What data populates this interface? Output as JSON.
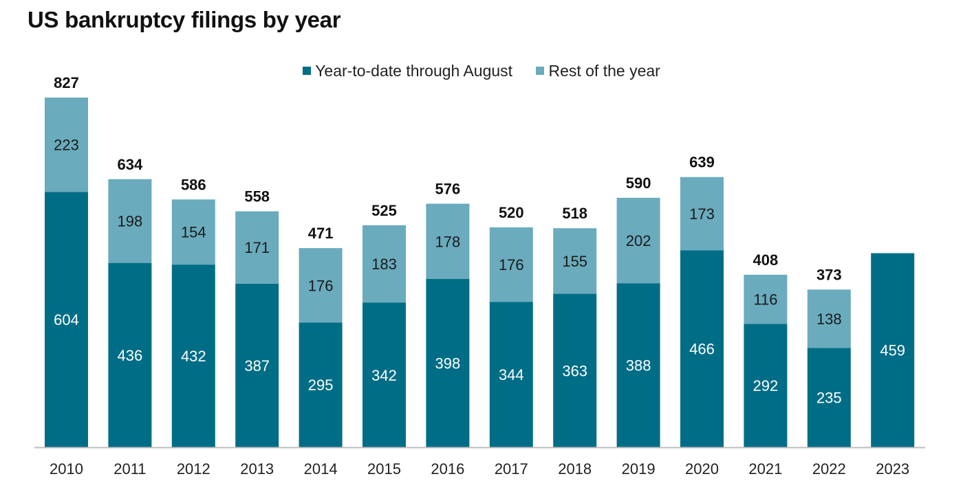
{
  "chart_data": {
    "type": "bar",
    "stacked": true,
    "title": "US bankruptcy filings by year",
    "categories": [
      "2010",
      "2011",
      "2012",
      "2013",
      "2014",
      "2015",
      "2016",
      "2017",
      "2018",
      "2019",
      "2020",
      "2021",
      "2022",
      "2023"
    ],
    "series": [
      {
        "name": "Year-to-date through August",
        "color": "#006d86",
        "values": [
          604,
          436,
          432,
          387,
          295,
          342,
          398,
          344,
          363,
          388,
          466,
          292,
          235,
          459
        ]
      },
      {
        "name": "Rest of the year",
        "color": "#6aabbd",
        "values": [
          223,
          198,
          154,
          171,
          176,
          183,
          178,
          176,
          155,
          202,
          173,
          116,
          138,
          null
        ]
      }
    ],
    "totals": [
      827,
      634,
      586,
      558,
      471,
      525,
      576,
      520,
      518,
      590,
      639,
      408,
      373,
      null
    ],
    "ylim": [
      0,
      880
    ],
    "grid": false,
    "legend_position": "top-center"
  }
}
